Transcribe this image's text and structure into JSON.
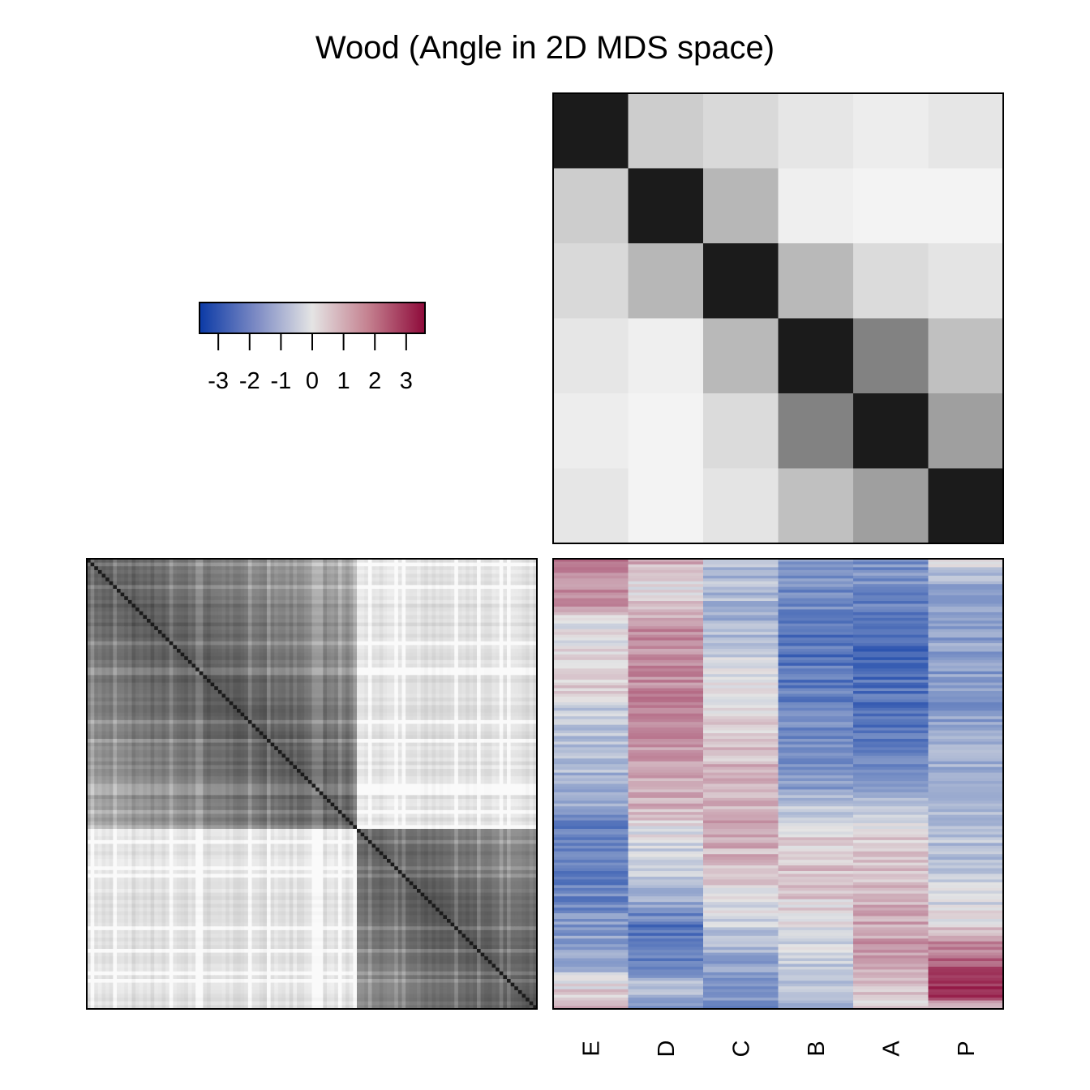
{
  "chart_data": [
    {
      "type": "heatmap",
      "name": "column-correlation",
      "title": "Wood (Angle in 2D MDS space)",
      "rows": [
        "E",
        "D",
        "C",
        "B",
        "A",
        "P"
      ],
      "columns": [
        "E",
        "D",
        "C",
        "B",
        "A",
        "P"
      ],
      "scale": "grayscale, darker = higher",
      "values": [
        [
          1.0,
          0.2,
          0.15,
          0.09,
          0.06,
          0.09
        ],
        [
          0.2,
          1.0,
          0.3,
          0.05,
          0.03,
          0.03
        ],
        [
          0.15,
          0.3,
          1.0,
          0.29,
          0.14,
          0.1
        ],
        [
          0.09,
          0.05,
          0.29,
          1.0,
          0.54,
          0.26
        ],
        [
          0.06,
          0.03,
          0.14,
          0.54,
          1.0,
          0.41
        ],
        [
          0.09,
          0.03,
          0.1,
          0.26,
          0.41,
          1.0
        ]
      ]
    },
    {
      "type": "heatmap",
      "name": "row-correlation",
      "rows": 120,
      "columns": 120,
      "scale": "grayscale, darker = higher",
      "description_of_structure": "strong diagonal; two blocks split near row 60",
      "block_split": 0.6
    },
    {
      "type": "heatmap",
      "name": "data-values",
      "columns": [
        "E",
        "D",
        "C",
        "B",
        "A",
        "P"
      ],
      "legend": {
        "type": "colorbar",
        "range": [
          -3.6,
          3.6
        ],
        "ticks": [
          -3,
          -2,
          -1,
          0,
          1,
          2,
          3
        ],
        "tick_labels": [
          "-3",
          "-2",
          "-1",
          "0",
          "1",
          "2",
          "3"
        ],
        "colors": {
          "low": "#0b3aa6",
          "mid": "#e4e4e4",
          "high": "#8e0a3a"
        }
      },
      "column_profiles": [
        {
          "column": "E",
          "profile": [
            [
              0.0,
              1.6
            ],
            [
              0.1,
              1.2
            ],
            [
              0.15,
              0.0
            ],
            [
              0.28,
              0.4
            ],
            [
              0.34,
              -0.6
            ],
            [
              0.55,
              -1.2
            ],
            [
              0.6,
              -2.2
            ],
            [
              0.75,
              -2.0
            ],
            [
              0.9,
              -1.2
            ],
            [
              0.97,
              0.5
            ],
            [
              1.0,
              1.2
            ]
          ]
        },
        {
          "column": "D",
          "profile": [
            [
              0.0,
              1.0
            ],
            [
              0.05,
              0.0
            ],
            [
              0.15,
              1.4
            ],
            [
              0.35,
              1.6
            ],
            [
              0.55,
              0.9
            ],
            [
              0.6,
              0.0
            ],
            [
              0.75,
              -1.0
            ],
            [
              0.82,
              -2.4
            ],
            [
              0.9,
              -2.0
            ],
            [
              0.96,
              -0.6
            ],
            [
              1.0,
              -2.0
            ]
          ]
        },
        {
          "column": "C",
          "profile": [
            [
              0.0,
              -0.8
            ],
            [
              0.15,
              -1.0
            ],
            [
              0.3,
              0.2
            ],
            [
              0.45,
              0.7
            ],
            [
              0.6,
              1.0
            ],
            [
              0.7,
              0.6
            ],
            [
              0.8,
              -0.4
            ],
            [
              0.9,
              -1.4
            ],
            [
              1.0,
              -1.8
            ]
          ]
        },
        {
          "column": "B",
          "profile": [
            [
              0.0,
              -1.5
            ],
            [
              0.2,
              -2.4
            ],
            [
              0.35,
              -2.0
            ],
            [
              0.5,
              -1.5
            ],
            [
              0.58,
              -0.4
            ],
            [
              0.62,
              0.4
            ],
            [
              0.72,
              0.6
            ],
            [
              0.82,
              0.0
            ],
            [
              0.95,
              -0.8
            ],
            [
              1.0,
              -1.0
            ]
          ]
        },
        {
          "column": "A",
          "profile": [
            [
              0.0,
              -1.6
            ],
            [
              0.2,
              -2.6
            ],
            [
              0.4,
              -2.2
            ],
            [
              0.55,
              -1.0
            ],
            [
              0.62,
              0.3
            ],
            [
              0.75,
              0.8
            ],
            [
              0.85,
              1.2
            ],
            [
              0.95,
              0.8
            ],
            [
              1.0,
              0.3
            ]
          ]
        },
        {
          "column": "P",
          "profile": [
            [
              0.0,
              0.0
            ],
            [
              0.05,
              -1.2
            ],
            [
              0.3,
              -1.6
            ],
            [
              0.5,
              -1.0
            ],
            [
              0.7,
              -0.6
            ],
            [
              0.8,
              0.0
            ],
            [
              0.85,
              1.4
            ],
            [
              0.93,
              2.6
            ],
            [
              0.97,
              3.2
            ],
            [
              1.0,
              0.5
            ]
          ]
        }
      ]
    }
  ]
}
